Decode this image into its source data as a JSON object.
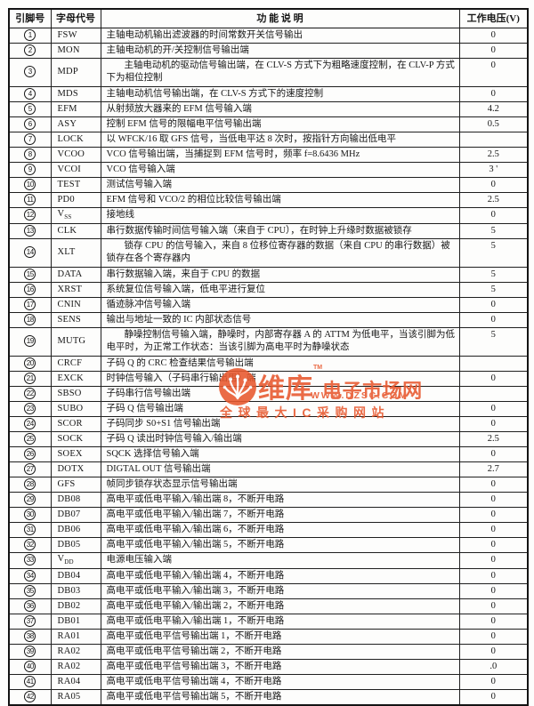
{
  "colors": {
    "table_border": "#141414",
    "watermark_orange": "#e8582e",
    "page_background": "#fdfdfc"
  },
  "table": {
    "header": {
      "pin": "引脚号",
      "code": "字母代号",
      "function": "功 能 说 明",
      "voltage": "工作电压(V)"
    },
    "rows": [
      {
        "pin": "1",
        "code": "FSW",
        "desc": "主轴电动机输出滤波器的时间常数开关信号输出",
        "volt": "0"
      },
      {
        "pin": "2",
        "code": "MON",
        "desc": "主轴电动机的开/关控制信号输出端",
        "volt": "0"
      },
      {
        "pin": "3",
        "code": "MDP",
        "desc": "主轴电动机的驱动信号输出端，在 CLV-S 方式下为粗略速度控制，在 CLV-P 方式下为相位控制",
        "volt": "0",
        "tall": true
      },
      {
        "pin": "4",
        "code": "MDS",
        "desc": "主轴电动机信号输出端，在 CLV-S 方式下的速度控制",
        "volt": "0"
      },
      {
        "pin": "5",
        "code": "EFM",
        "desc": "从射频放大器来的 EFM 信号输入端",
        "volt": "4.2"
      },
      {
        "pin": "6",
        "code": "ASY",
        "desc": "控制 EFM 信号的限幅电平信号输出端",
        "volt": "0.5"
      },
      {
        "pin": "7",
        "code": "LOCK",
        "desc": "以 WFCK/16 取 GFS 信号，当低电平达 8 次时，按指针方向输出低电平",
        "volt": ""
      },
      {
        "pin": "8",
        "code": "VCOO",
        "desc": "VCO 信号输出端，当捕捉到 EFM 信号时，频率 f=8.6436 MHz",
        "volt": "2.5"
      },
      {
        "pin": "9",
        "code": "VCOI",
        "desc": "VCO 信号输入端",
        "volt": "3 '"
      },
      {
        "pin": "10",
        "code": "TEST",
        "desc": "测试信号输入端",
        "volt": "0"
      },
      {
        "pin": "11",
        "code": "PD0",
        "desc": "EFM 信号和 VCO/2 的相位比较信号输出端",
        "volt": "2.5"
      },
      {
        "pin": "12",
        "code": "V_SS",
        "desc": "接地线",
        "volt": "0"
      },
      {
        "pin": "13",
        "code": "CLK",
        "desc": "串行数据传输时间信号输入端（来自于 CPU），在时钟上升缘时数据被锁存",
        "volt": "5"
      },
      {
        "pin": "14",
        "code": "XLT",
        "desc": "锁存 CPU 的信号输入，来自 8 位移位寄存器的数据（来自 CPU 的串行数据）被锁存在各个寄存器内",
        "volt": "5",
        "tall": true
      },
      {
        "pin": "15",
        "code": "DATA",
        "desc": "串行数据输入端，来自于 CPU 的数据",
        "volt": "5"
      },
      {
        "pin": "16",
        "code": "XRST",
        "desc": "系统复位信号输入端，低电平进行复位",
        "volt": "5"
      },
      {
        "pin": "17",
        "code": "CNIN",
        "desc": "循迹脉冲信号输入端",
        "volt": "0"
      },
      {
        "pin": "18",
        "code": "SENS",
        "desc": "输出与地址一致的 IC 内部状态信号",
        "volt": "0"
      },
      {
        "pin": "19",
        "code": "MUTG",
        "desc": "静噪控制信号输入端，静噪时，内部寄存器 A 的 ATTM 为低电平，当该引脚为低电平时，为正常工作状态：当该引脚为高电平时为静噪状态",
        "volt": "5",
        "tall": true
      },
      {
        "pin": "20",
        "code": "CRCF",
        "desc": "子码 Q 的 CRC 检查结果信号输出端",
        "volt": ""
      },
      {
        "pin": "21",
        "code": "EXCK",
        "desc": "时钟信号输入（子码串行输出用）端",
        "volt": "0"
      },
      {
        "pin": "22",
        "code": "SBSO",
        "desc": "子码串行信号输出端",
        "volt": ""
      },
      {
        "pin": "23",
        "code": "SUBO",
        "desc": "子码 Q 信号输出端",
        "volt": "0"
      },
      {
        "pin": "24",
        "code": "SCOR",
        "desc": "子码同步 S0+S1 信号输出端",
        "volt": "0"
      },
      {
        "pin": "25",
        "code": "SOCK",
        "desc": "子码 Q 读出时钟信号输入/输出端",
        "volt": "2.5"
      },
      {
        "pin": "26",
        "code": "SOEX",
        "desc": "SQCK 选择信号输入端",
        "volt": "0"
      },
      {
        "pin": "27",
        "code": "DOTX",
        "desc": "DIGTAL OUT 信号输出端",
        "volt": "2.7"
      },
      {
        "pin": "28",
        "code": "GFS",
        "desc": "帧同步锁存状态显示信号输出端",
        "volt": "0"
      },
      {
        "pin": "29",
        "code": "DB08",
        "desc": "高电平或低电平输入/输出端 8，不断开电路",
        "volt": "0"
      },
      {
        "pin": "30",
        "code": "DB07",
        "desc": "高电平或低电平输入/输出端 7，不断开电路",
        "volt": "0"
      },
      {
        "pin": "31",
        "code": "DB06",
        "desc": "高电平或低电平输入/输出端 6，不断开电路",
        "volt": "0"
      },
      {
        "pin": "32",
        "code": "DB05",
        "desc": "高电平或低电平输入/输出端 5，不断开电路",
        "volt": "0"
      },
      {
        "pin": "33",
        "code": "V_DD",
        "desc": "电源电压输入端",
        "volt": "0"
      },
      {
        "pin": "34",
        "code": "DB04",
        "desc": "高电平或低电平输入/输出端 4，不断开电路",
        "volt": "0"
      },
      {
        "pin": "35",
        "code": "DB03",
        "desc": "高电平或低电平输入/输出端 3，不断开电路",
        "volt": "0"
      },
      {
        "pin": "36",
        "code": "DB02",
        "desc": "高电平或低电平输入/输出端 2，不断开电路",
        "volt": "0"
      },
      {
        "pin": "37",
        "code": "DB01",
        "desc": "高电平或低电平输入/输出端 1，不断开电路",
        "volt": "0"
      },
      {
        "pin": "38",
        "code": "RA01",
        "desc": "高电平或低电平信号输出端 1，不断开电路",
        "volt": "0"
      },
      {
        "pin": "39",
        "code": "RA02",
        "desc": "高电平或低电平信号输出端 2，不断开电路",
        "volt": "0"
      },
      {
        "pin": "40",
        "code": "RA02",
        "desc": "高电平或低电平信号输出端 3，不断开电路",
        "volt": ".0"
      },
      {
        "pin": "41",
        "code": "RA04",
        "desc": "高电平或低电平信号输出端 4，不断开电路",
        "volt": "0"
      },
      {
        "pin": "42",
        "code": "RA05",
        "desc": "高电平或低电平信号输出端 5，不断开电路",
        "volt": "0"
      }
    ]
  },
  "watermark": {
    "brand_cn_primary": "维库",
    "trademark": "TM",
    "brand_cn_secondary": "电子市场网",
    "url": "WWW.DZSC.COM",
    "tagline": "全球最大IC采购网站",
    "logo_icon": "circuit-sprout-icon",
    "color": "#e8582e"
  }
}
